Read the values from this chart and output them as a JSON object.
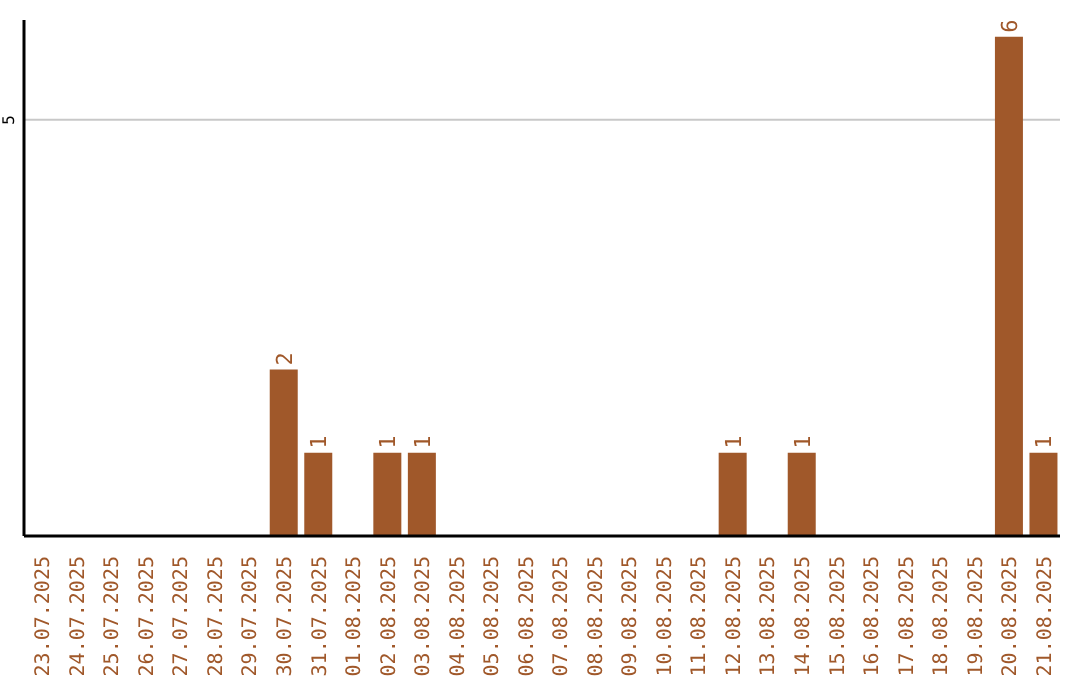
{
  "chart_data": {
    "type": "bar",
    "categories": [
      "23.07.2025",
      "24.07.2025",
      "25.07.2025",
      "26.07.2025",
      "27.07.2025",
      "28.07.2025",
      "29.07.2025",
      "30.07.2025",
      "31.07.2025",
      "01.08.2025",
      "02.08.2025",
      "03.08.2025",
      "04.08.2025",
      "05.08.2025",
      "06.08.2025",
      "07.08.2025",
      "08.08.2025",
      "09.08.2025",
      "10.08.2025",
      "11.08.2025",
      "12.08.2025",
      "13.08.2025",
      "14.08.2025",
      "15.08.2025",
      "16.08.2025",
      "17.08.2025",
      "18.08.2025",
      "19.08.2025",
      "20.08.2025",
      "21.08.2025"
    ],
    "values": [
      0,
      0,
      0,
      0,
      0,
      0,
      0,
      2,
      1,
      0,
      1,
      1,
      0,
      0,
      0,
      0,
      0,
      0,
      0,
      0,
      1,
      0,
      1,
      0,
      0,
      0,
      0,
      0,
      6,
      1
    ],
    "value_labels": [
      null,
      null,
      null,
      null,
      null,
      null,
      null,
      "2",
      "1",
      null,
      "1",
      "1",
      null,
      null,
      null,
      null,
      null,
      null,
      null,
      null,
      "1",
      null,
      "1",
      null,
      null,
      null,
      null,
      null,
      "6",
      "1"
    ],
    "color": "#a0582a",
    "ylim": [
      0,
      6.2
    ],
    "yticks": [
      5
    ],
    "grid": "y"
  }
}
